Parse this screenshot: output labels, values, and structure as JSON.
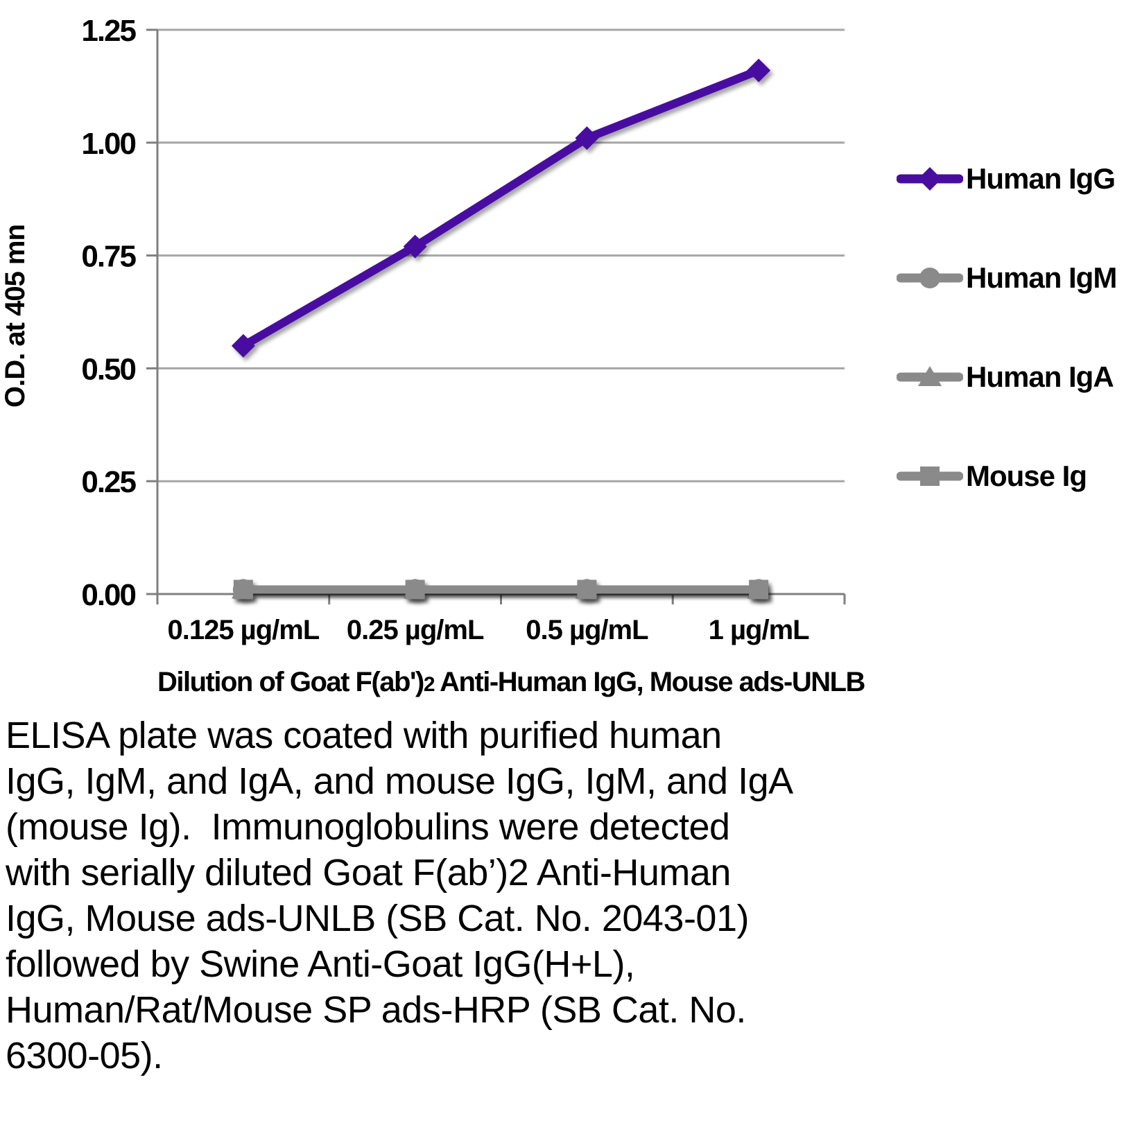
{
  "chart_data": {
    "type": "line",
    "categories": [
      "0.125 µg/mL",
      "0.25 µg/mL",
      "0.5 µg/mL",
      "1 µg/mL"
    ],
    "series": [
      {
        "name": "Human IgG",
        "values": [
          0.55,
          0.77,
          1.01,
          1.16
        ],
        "color": "#480DA0",
        "marker": "diamond"
      },
      {
        "name": "Human IgM",
        "values": [
          0.01,
          0.01,
          0.01,
          0.01
        ],
        "color": "#8A8A8A",
        "marker": "circle"
      },
      {
        "name": "Human IgA",
        "values": [
          0.01,
          0.01,
          0.01,
          0.01
        ],
        "color": "#8A8A8A",
        "marker": "triangle"
      },
      {
        "name": "Mouse Ig",
        "values": [
          0.01,
          0.01,
          0.01,
          0.01
        ],
        "color": "#8A8A8A",
        "marker": "square"
      }
    ],
    "ylabel": "O.D. at 405 mn",
    "xlabel": {
      "prefix": "Dilution of Goat F(ab')",
      "subscript": "2",
      "suffix": " Anti-Human IgG, Mouse ads-UNLB"
    },
    "ylim": [
      0,
      1.25
    ],
    "ytick_step": 0.25,
    "ytick_labels": [
      "0.00",
      "0.25",
      "0.50",
      "0.75",
      "1.00",
      "1.25"
    ],
    "grid": true,
    "legend_position": "right",
    "colors": {
      "gridline": "#A6A6A6",
      "axis": "#7F7F7F",
      "text": "#000000"
    }
  },
  "figure": {
    "caption": "ELISA plate was coated with purified human\nIgG, IgM, and IgA, and mouse IgG, IgM, and IgA\n(mouse Ig).  Immunoglobulins were detected\nwith serially diluted Goat F(ab’)2 Anti-Human\nIgG, Mouse ads-UNLB (SB Cat. No. 2043-01)\nfollowed by Swine Anti-Goat IgG(H+L),\nHuman/Rat/Mouse SP ads-HRP (SB Cat. No.\n6300-05)."
  }
}
